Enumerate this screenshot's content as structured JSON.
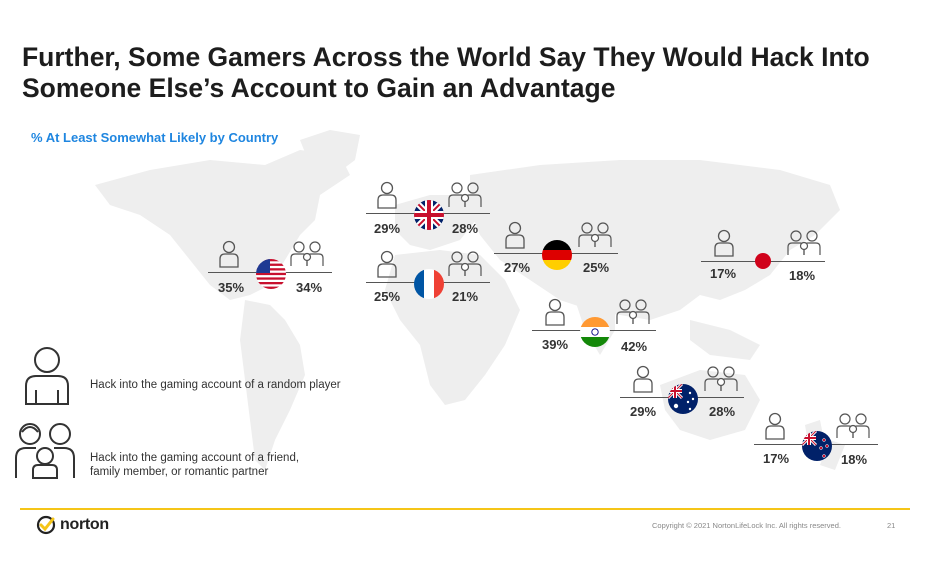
{
  "title": "Further, Some Gamers Across the World Say They Would Hack Into Someone Else’s Account to Gain an Advantage",
  "subtitle": "% At Least Somewhat Likely by Country",
  "countries": [
    {
      "flag": "us-flag",
      "random": "35%",
      "friend": "34%"
    },
    {
      "flag": "uk-flag",
      "random": "29%",
      "friend": "28%"
    },
    {
      "flag": "france-flag",
      "random": "25%",
      "friend": "21%"
    },
    {
      "flag": "germany-flag",
      "random": "27%",
      "friend": "25%"
    },
    {
      "flag": "japan-flag",
      "random": "17%",
      "friend": "18%"
    },
    {
      "flag": "india-flag",
      "random": "39%",
      "friend": "42%"
    },
    {
      "flag": "australia-flag",
      "random": "29%",
      "friend": "28%"
    },
    {
      "flag": "new-zealand-flag",
      "random": "17%",
      "friend": "18%"
    }
  ],
  "legend": {
    "random": "Hack into the gaming account of a random player",
    "friend": "Hack into the gaming account of a friend, family member, or romantic partner"
  },
  "footer": {
    "logo": "norton",
    "copyright": "Copyright © 2021 NortonLifeLock Inc. All rights reserved.",
    "page": "21"
  },
  "colors": {
    "accent": "#1f86e0",
    "footer_line": "#f5c518",
    "map": "#eeeeee"
  }
}
